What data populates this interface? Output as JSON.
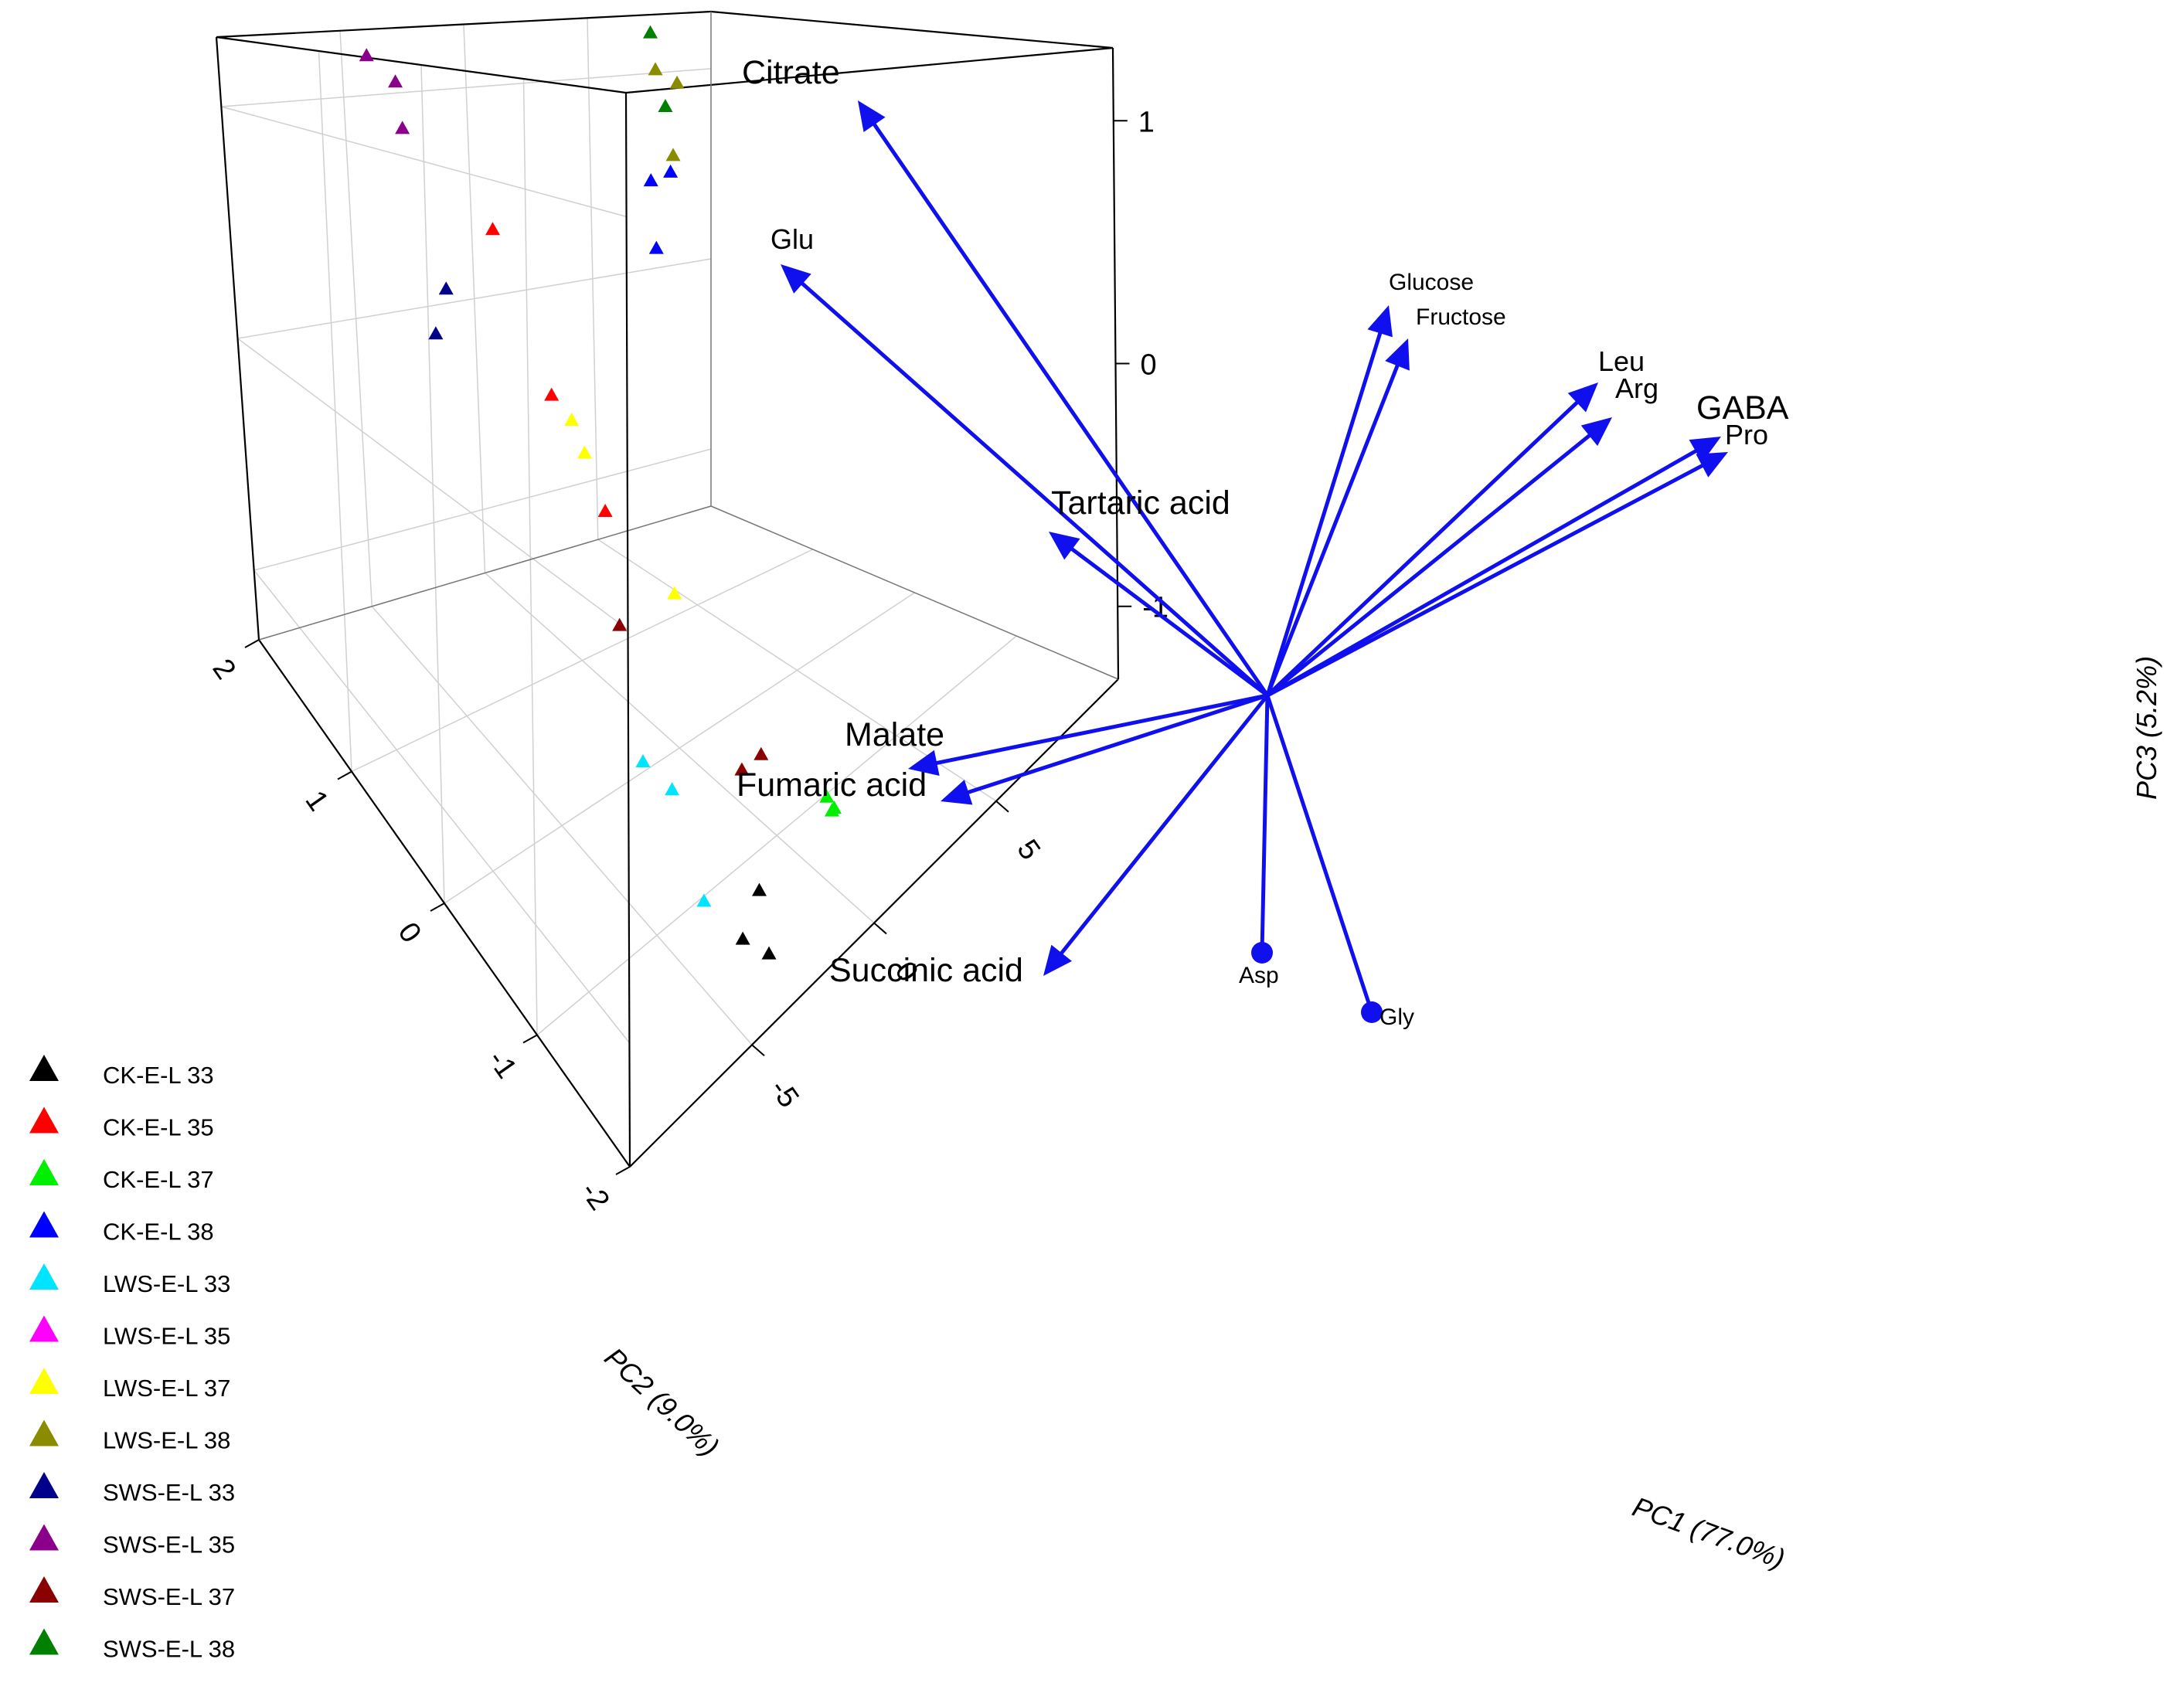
{
  "chart_data": {
    "type": "scatter",
    "subtype": "3d-pca-biplot",
    "axes": {
      "x": {
        "label": "PC1 (77.0%)",
        "ticks": [
          -5,
          0,
          5
        ],
        "tick_labels": [
          "-5",
          "0",
          "5"
        ],
        "range": [
          -10,
          10
        ]
      },
      "y": {
        "label": "PC2 (9.0%)",
        "ticks": [
          -2,
          -1,
          0,
          1,
          2
        ],
        "tick_labels": [
          "-2",
          "-1",
          "0",
          "1",
          "2"
        ],
        "range": [
          -2,
          2
        ]
      },
      "z": {
        "label": "PC3 (5.2%)",
        "ticks": [
          -1,
          0,
          1
        ],
        "tick_labels": [
          "-1",
          "0",
          "1"
        ],
        "range": [
          -1.3,
          1.3
        ]
      }
    },
    "grid": true,
    "legend_position": "left",
    "series": [
      {
        "name": "CK-E-L 33",
        "color": "#000000",
        "points": [
          [
            -3.9,
            -1.9,
            -1.15
          ],
          [
            -3.8,
            -1.6,
            -1.2
          ],
          [
            -3.5,
            -1.7,
            -1.05
          ]
        ]
      },
      {
        "name": "CK-E-L 35",
        "color": "#ff0000",
        "points": [
          [
            -3.2,
            1.0,
            0.55
          ],
          [
            -3.0,
            0.5,
            0.0
          ],
          [
            -2.5,
            0.1,
            -0.35
          ]
        ]
      },
      {
        "name": "CK-E-L 37",
        "color": "#00ee00",
        "points": [
          [
            -1.9,
            -2.0,
            -0.8
          ],
          [
            -1.6,
            -2.0,
            -0.85
          ],
          [
            -1.3,
            -1.9,
            -0.9
          ]
        ]
      },
      {
        "name": "CK-E-L 38",
        "color": "#0000ff",
        "points": [
          [
            7.7,
            2.0,
            0.1
          ],
          [
            7.5,
            2.0,
            0.45
          ],
          [
            7.9,
            1.9,
            0.5
          ]
        ]
      },
      {
        "name": "LWS-E-L 33",
        "color": "#00e5ff",
        "points": [
          [
            -4.7,
            -0.8,
            -0.85
          ],
          [
            -4.3,
            -1.0,
            -0.9
          ],
          [
            -4.6,
            -1.4,
            -1.1
          ]
        ]
      },
      {
        "name": "LWS-E-L 35",
        "color": "#ff00ff",
        "points": [
          [
            -5.4,
            2.0,
            1.55
          ],
          [
            -5.1,
            2.0,
            1.6
          ],
          [
            -5.0,
            2.0,
            1.55
          ]
        ]
      },
      {
        "name": "LWS-E-L 37",
        "color": "#ffff00",
        "points": [
          [
            -3.0,
            0.3,
            -0.05
          ],
          [
            -2.9,
            0.2,
            -0.15
          ],
          [
            -1.7,
            -0.4,
            -0.55
          ]
        ]
      },
      {
        "name": "LWS-E-L 38",
        "color": "#8b8b00",
        "points": [
          [
            6.5,
            1.7,
            1.05
          ],
          [
            8.2,
            1.9,
            0.95
          ],
          [
            7.6,
            1.8,
            0.6
          ]
        ]
      },
      {
        "name": "SWS-E-L 33",
        "color": "#00008b",
        "points": [
          [
            -4.4,
            1.2,
            0.3
          ],
          [
            -4.5,
            1.3,
            0.1
          ]
        ]
      },
      {
        "name": "SWS-E-L 35",
        "color": "#8b008b",
        "points": [
          [
            -4.8,
            1.8,
            1.2
          ],
          [
            -4.5,
            1.6,
            1.1
          ],
          [
            -4.3,
            1.6,
            0.9
          ]
        ]
      },
      {
        "name": "SWS-E-L 37",
        "color": "#8b0000",
        "points": [
          [
            -3.6,
            -0.3,
            -0.6
          ],
          [
            -2.6,
            -1.3,
            -0.85
          ],
          [
            -2.2,
            -1.4,
            -0.8
          ]
        ]
      },
      {
        "name": "SWS-E-L 38",
        "color": "#008000",
        "points": [
          [
            5.5,
            1.5,
            1.25
          ],
          [
            7.3,
            1.8,
            0.85
          ]
        ]
      }
    ],
    "loadings": [
      {
        "name": "Citrate",
        "head": "arrow",
        "label_size": "large"
      },
      {
        "name": "Glu",
        "head": "arrow",
        "label_size": "medium"
      },
      {
        "name": "Glucose",
        "head": "arrow",
        "label_size": "small"
      },
      {
        "name": "Fructose",
        "head": "arrow",
        "label_size": "small"
      },
      {
        "name": "Leu",
        "head": "arrow",
        "label_size": "medium"
      },
      {
        "name": "Arg",
        "head": "arrow",
        "label_size": "medium"
      },
      {
        "name": "GABA",
        "head": "arrow",
        "label_size": "large"
      },
      {
        "name": "Pro",
        "head": "arrow",
        "label_size": "medium"
      },
      {
        "name": "Tartaric acid",
        "head": "arrow",
        "label_size": "large"
      },
      {
        "name": "Malate",
        "head": "arrow",
        "label_size": "large"
      },
      {
        "name": "Fumaric acid",
        "head": "arrow",
        "label_size": "large"
      },
      {
        "name": "Succinic acid",
        "head": "arrow",
        "label_size": "large"
      },
      {
        "name": "Asp",
        "head": "dot",
        "label_size": "small"
      },
      {
        "name": "Gly",
        "head": "dot",
        "label_size": "small"
      }
    ],
    "colors": {
      "loading": "#1010ee",
      "frame": "#000000",
      "grid": "#d0d0d0"
    }
  }
}
